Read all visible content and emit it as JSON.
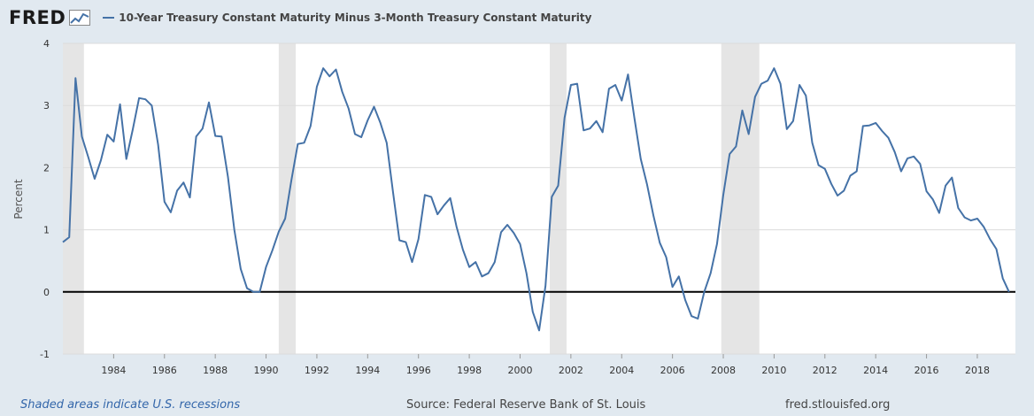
{
  "header": {
    "logo_text": "FRED",
    "logo_icon": "chart-line-icon",
    "legend_label": "10-Year Treasury Constant Maturity Minus 3-Month Treasury Constant Maturity"
  },
  "footer": {
    "recession_note": "Shaded areas indicate U.S. recessions",
    "source": "Source: Federal Reserve Bank of St. Louis",
    "url": "fred.stlouisfed.org"
  },
  "colors": {
    "series": "#4572a7",
    "recession": "#e5e5e5",
    "background": "#e1e9f0",
    "plot_background": "#ffffff",
    "zero_line": "#000000"
  },
  "chart_data": {
    "type": "line",
    "title": "",
    "xlabel": "",
    "ylabel": "Percent",
    "xlim": [
      1982.0,
      2019.5
    ],
    "ylim": [
      -1,
      4
    ],
    "yticks": [
      -1,
      0,
      1,
      2,
      3,
      4
    ],
    "xticks": [
      1984,
      1986,
      1988,
      1990,
      1992,
      1994,
      1996,
      1998,
      2000,
      2002,
      2004,
      2006,
      2008,
      2010,
      2012,
      2014,
      2016,
      2018
    ],
    "grid": true,
    "legend": "top-left",
    "recessions": [
      [
        1982.0,
        1982.83
      ],
      [
        1990.5,
        1991.17
      ],
      [
        2001.17,
        2001.83
      ],
      [
        2007.92,
        2009.42
      ]
    ],
    "series": [
      {
        "name": "10-Year Treasury Constant Maturity Minus 3-Month Treasury Constant Maturity",
        "x": [
          1982.0,
          1982.25,
          1982.5,
          1982.75,
          1983.0,
          1983.25,
          1983.5,
          1983.75,
          1984.0,
          1984.25,
          1984.5,
          1984.75,
          1985.0,
          1985.25,
          1985.5,
          1985.75,
          1986.0,
          1986.25,
          1986.5,
          1986.75,
          1987.0,
          1987.25,
          1987.5,
          1987.75,
          1988.0,
          1988.25,
          1988.5,
          1988.75,
          1989.0,
          1989.25,
          1989.5,
          1989.75,
          1990.0,
          1990.25,
          1990.5,
          1990.75,
          1991.0,
          1991.25,
          1991.5,
          1991.75,
          1992.0,
          1992.25,
          1992.5,
          1992.75,
          1993.0,
          1993.25,
          1993.5,
          1993.75,
          1994.0,
          1994.25,
          1994.5,
          1994.75,
          1995.0,
          1995.25,
          1995.5,
          1995.75,
          1996.0,
          1996.25,
          1996.5,
          1996.75,
          1997.0,
          1997.25,
          1997.5,
          1997.75,
          1998.0,
          1998.25,
          1998.5,
          1998.75,
          1999.0,
          1999.25,
          1999.5,
          1999.75,
          2000.0,
          2000.25,
          2000.5,
          2000.75,
          2001.0,
          2001.25,
          2001.5,
          2001.75,
          2002.0,
          2002.25,
          2002.5,
          2002.75,
          2003.0,
          2003.25,
          2003.5,
          2003.75,
          2004.0,
          2004.25,
          2004.5,
          2004.75,
          2005.0,
          2005.25,
          2005.5,
          2005.75,
          2006.0,
          2006.25,
          2006.5,
          2006.75,
          2007.0,
          2007.25,
          2007.5,
          2007.75,
          2008.0,
          2008.25,
          2008.5,
          2008.75,
          2009.0,
          2009.25,
          2009.5,
          2009.75,
          2010.0,
          2010.25,
          2010.5,
          2010.75,
          2011.0,
          2011.25,
          2011.5,
          2011.75,
          2012.0,
          2012.25,
          2012.5,
          2012.75,
          2013.0,
          2013.25,
          2013.5,
          2013.75,
          2014.0,
          2014.25,
          2014.5,
          2014.75,
          2015.0,
          2015.25,
          2015.5,
          2015.75,
          2016.0,
          2016.25,
          2016.5,
          2016.75,
          2017.0,
          2017.25,
          2017.5,
          2017.75,
          2018.0,
          2018.25,
          2018.5,
          2018.75,
          2019.0,
          2019.25
        ],
        "values": [
          0.8,
          0.88,
          3.44,
          2.5,
          2.17,
          1.82,
          2.12,
          2.53,
          2.42,
          3.02,
          2.14,
          2.61,
          3.12,
          3.1,
          3.0,
          2.37,
          1.45,
          1.28,
          1.63,
          1.76,
          1.52,
          2.5,
          2.63,
          3.05,
          2.51,
          2.5,
          1.85,
          1.0,
          0.37,
          0.06,
          0.0,
          0.0,
          0.4,
          0.67,
          0.97,
          1.18,
          1.8,
          2.38,
          2.4,
          2.67,
          3.3,
          3.6,
          3.47,
          3.58,
          3.22,
          2.95,
          2.54,
          2.49,
          2.76,
          2.98,
          2.72,
          2.4,
          1.6,
          0.83,
          0.8,
          0.48,
          0.85,
          1.56,
          1.53,
          1.25,
          1.39,
          1.51,
          1.05,
          0.68,
          0.4,
          0.48,
          0.25,
          0.3,
          0.48,
          0.96,
          1.08,
          0.95,
          0.77,
          0.3,
          -0.32,
          -0.62,
          0.1,
          1.53,
          1.71,
          2.8,
          3.33,
          3.35,
          2.6,
          2.63,
          2.75,
          2.57,
          3.27,
          3.33,
          3.08,
          3.5,
          2.8,
          2.14,
          1.73,
          1.23,
          0.79,
          0.56,
          0.08,
          0.25,
          -0.13,
          -0.39,
          -0.43,
          0.0,
          0.3,
          0.77,
          1.56,
          2.22,
          2.34,
          2.92,
          2.54,
          3.14,
          3.35,
          3.4,
          3.6,
          3.35,
          2.62,
          2.75,
          3.33,
          3.16,
          2.4,
          2.04,
          1.98,
          1.74,
          1.55,
          1.63,
          1.87,
          1.94,
          2.67,
          2.68,
          2.72,
          2.59,
          2.48,
          2.25,
          1.94,
          2.15,
          2.18,
          2.06,
          1.62,
          1.49,
          1.27,
          1.71,
          1.84,
          1.35,
          1.2,
          1.15,
          1.18,
          1.05,
          0.85,
          0.69,
          0.22,
          0.0
        ]
      }
    ]
  }
}
